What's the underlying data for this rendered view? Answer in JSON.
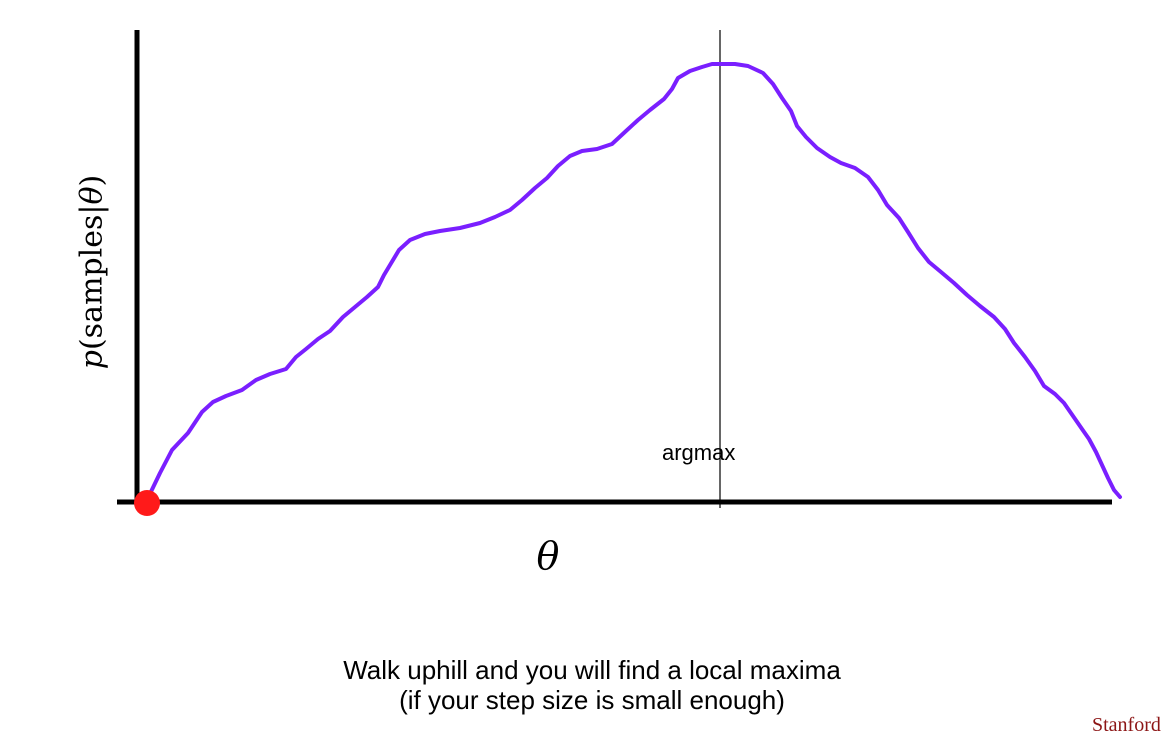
{
  "diagram": {
    "y_axis_label": {
      "prefix": "p",
      "open": "(samples|",
      "theta": "θ",
      "close": ")"
    },
    "x_axis_label": "θ",
    "marker_label": "argmax",
    "caption_line1": "Walk uphill and you will find a local maxima",
    "caption_line2": "(if your step size is small enough)",
    "brand": "Stanford",
    "curve_color": "#7a1fff",
    "start_point_color": "#ff1a1a",
    "axis_color": "#000000"
  }
}
